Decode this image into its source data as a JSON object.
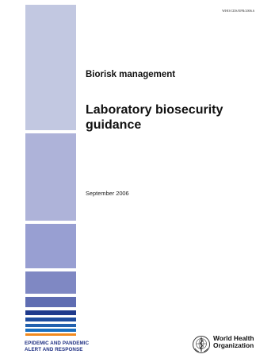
{
  "document": {
    "reference": "WHO/CDS/EPR/2006.6",
    "subtitle": "Biorisk management",
    "title_line1": "Laboratory biosecurity",
    "title_line2": "guidance",
    "date": "September 2006"
  },
  "program": {
    "line1": "EPIDEMIC AND PANDEMIC",
    "line2": "ALERT AND RESPONSE"
  },
  "organization": {
    "line1": "World Health",
    "line2": "Organization"
  },
  "colors": {
    "stripes": [
      "#c2c8e1",
      "#aeb3d9",
      "#989fd2",
      "#7f88c3",
      "#5f6db2",
      "#1f3a8c",
      "#1e4c9e",
      "#2361ae",
      "#1a6fc0",
      "#f28a1e"
    ],
    "program_text": "#1d2e82"
  }
}
